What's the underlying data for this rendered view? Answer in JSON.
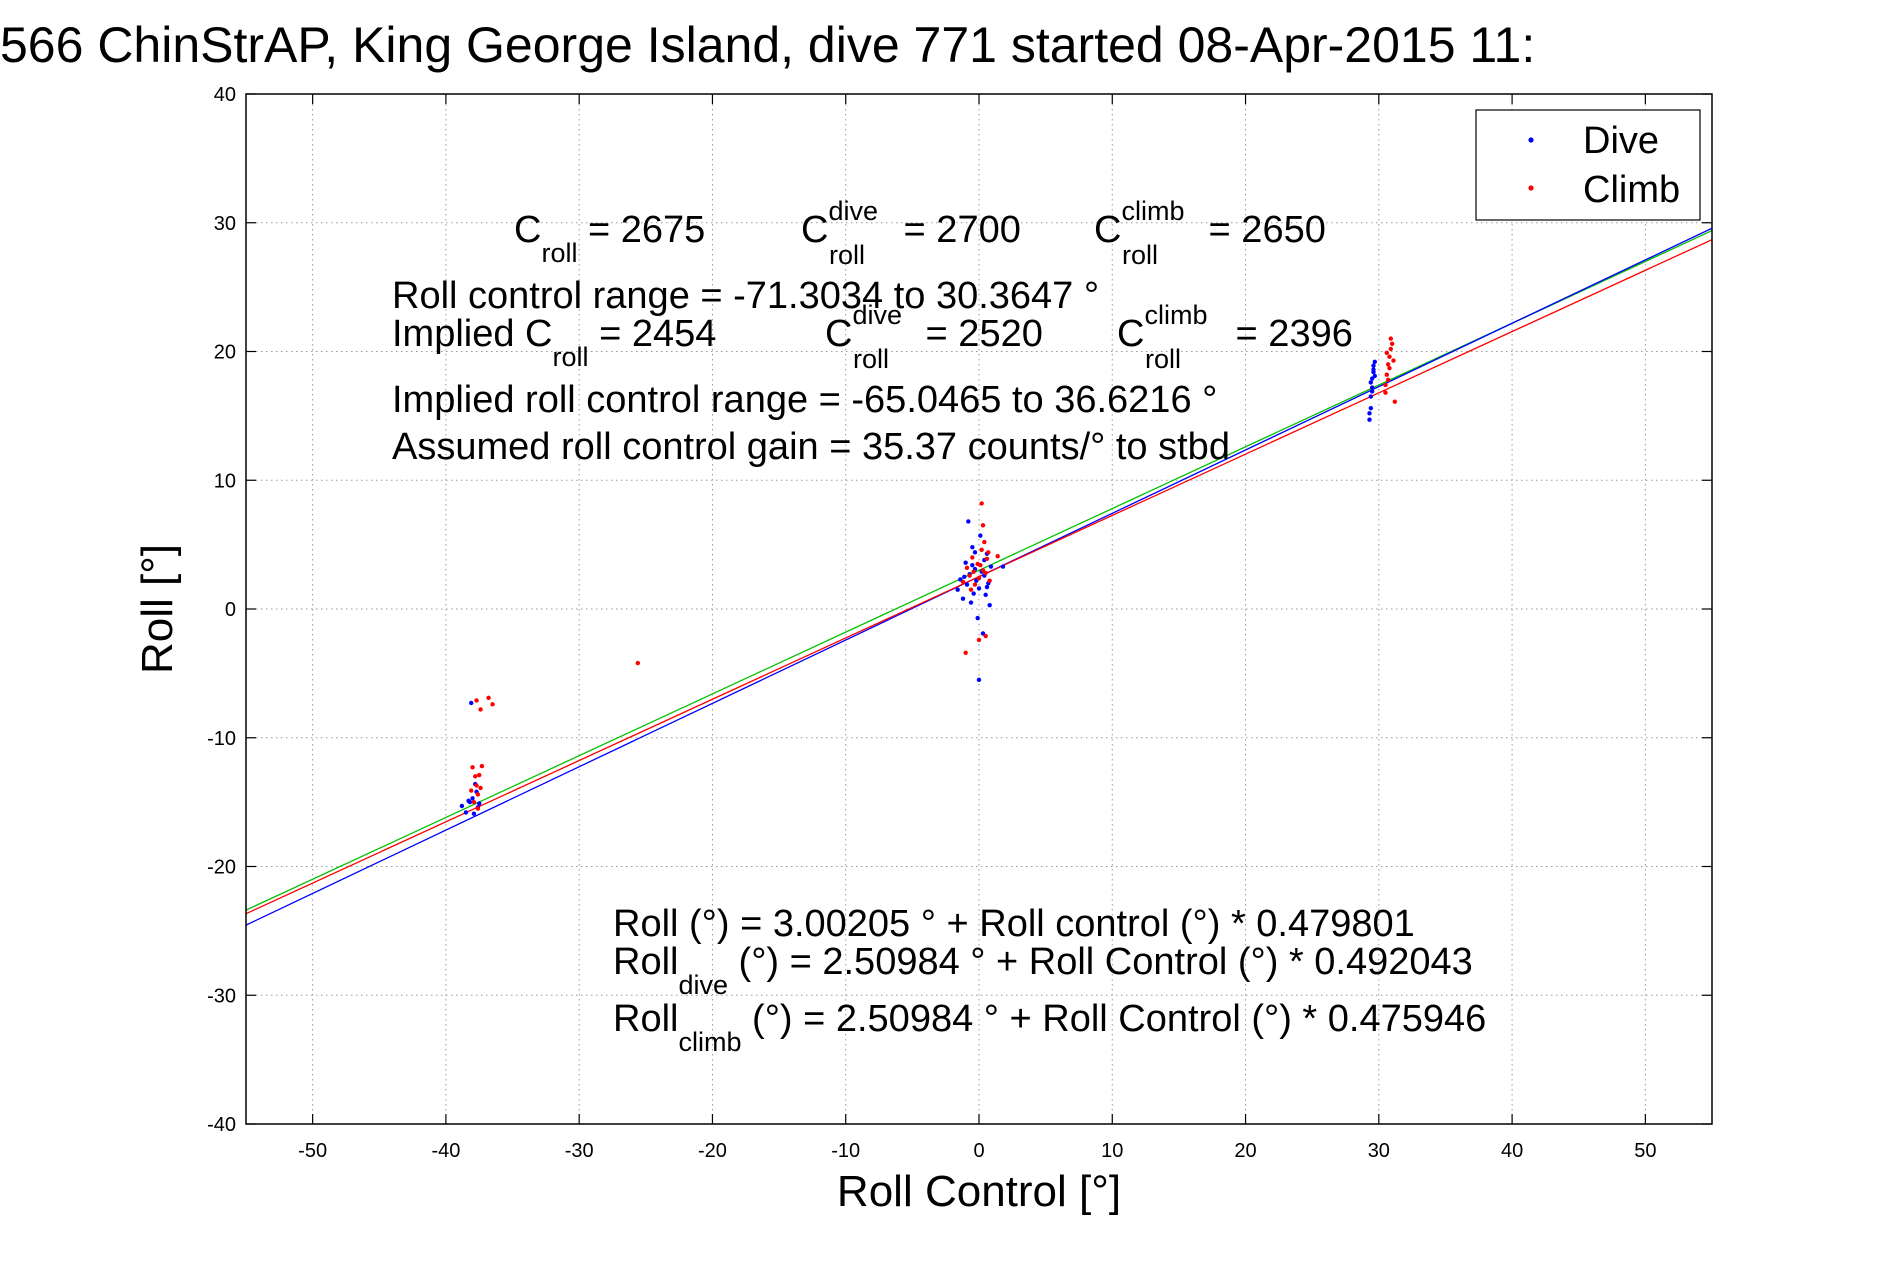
{
  "chart_data": {
    "type": "scatter",
    "title": "566 ChinStrAP, King George Island, dive 771 started 08-Apr-2015 11:",
    "xlabel": "Roll Control [°]",
    "ylabel": "Roll [°]",
    "xlim": [
      -55,
      55
    ],
    "ylim": [
      -40,
      40
    ],
    "xticks": [
      -50,
      -40,
      -30,
      -20,
      -10,
      0,
      10,
      20,
      30,
      40,
      50
    ],
    "yticks": [
      -40,
      -30,
      -20,
      -10,
      0,
      10,
      20,
      30,
      40
    ],
    "xtick_labels": [
      "-50",
      "-40",
      "-30",
      "-20",
      "-10",
      "0",
      "10",
      "20",
      "30",
      "40",
      "50"
    ],
    "ytick_labels": [
      "-40",
      "-30",
      "-20",
      "-10",
      "0",
      "10",
      "20",
      "30",
      "40"
    ],
    "grid": true,
    "legend": {
      "placement": "top-right",
      "entries": [
        {
          "label": "Dive",
          "color": "#0000ff"
        },
        {
          "label": "Climb",
          "color": "#ff0000"
        }
      ]
    },
    "series": [
      {
        "name": "Dive",
        "kind": "points",
        "color": "#0000ff",
        "points": [
          [
            -38.8,
            -15.3
          ],
          [
            -38.5,
            -15.8
          ],
          [
            -38.2,
            -15.0
          ],
          [
            -38.0,
            -14.7
          ],
          [
            -37.9,
            -15.9
          ],
          [
            -37.7,
            -14.2
          ],
          [
            -37.6,
            -15.4
          ],
          [
            -37.8,
            -13.6
          ],
          [
            -38.3,
            -14.9
          ],
          [
            -37.5,
            -15.1
          ],
          [
            -38.1,
            -7.3
          ],
          [
            -1.6,
            1.5
          ],
          [
            -1.4,
            2.3
          ],
          [
            -1.2,
            0.8
          ],
          [
            -1.0,
            3.6
          ],
          [
            -0.9,
            1.9
          ],
          [
            -0.8,
            6.8
          ],
          [
            -0.7,
            2.7
          ],
          [
            -0.6,
            0.5
          ],
          [
            -0.5,
            4.8
          ],
          [
            -0.4,
            1.2
          ],
          [
            -0.3,
            3.1
          ],
          [
            -0.2,
            2.2
          ],
          [
            -0.1,
            -0.7
          ],
          [
            0.0,
            1.6
          ],
          [
            0.1,
            5.7
          ],
          [
            0.2,
            2.9
          ],
          [
            0.3,
            -1.9
          ],
          [
            0.4,
            3.8
          ],
          [
            0.5,
            1.1
          ],
          [
            0.6,
            4.3
          ],
          [
            0.7,
            2.0
          ],
          [
            0.8,
            0.3
          ],
          [
            0.9,
            3.3
          ],
          [
            0.0,
            -5.5
          ],
          [
            -0.5,
            3.4
          ],
          [
            0.4,
            2.6
          ],
          [
            -1.1,
            2.5
          ],
          [
            0.6,
            1.7
          ],
          [
            1.8,
            3.3
          ],
          [
            -0.3,
            4.4
          ],
          [
            29.3,
            14.7
          ],
          [
            29.4,
            15.6
          ],
          [
            29.4,
            16.5
          ],
          [
            29.5,
            17.2
          ],
          [
            29.5,
            17.9
          ],
          [
            29.6,
            18.4
          ],
          [
            29.6,
            18.9
          ],
          [
            29.7,
            19.2
          ],
          [
            29.4,
            17.6
          ],
          [
            29.5,
            16.9
          ],
          [
            29.6,
            18.6
          ],
          [
            29.3,
            15.2
          ],
          [
            29.7,
            18.1
          ]
        ]
      },
      {
        "name": "Climb",
        "kind": "points",
        "color": "#ff0000",
        "points": [
          [
            -38.0,
            -12.3
          ],
          [
            -37.8,
            -13.0
          ],
          [
            -37.7,
            -13.7
          ],
          [
            -37.6,
            -14.4
          ],
          [
            -37.5,
            -12.9
          ],
          [
            -37.4,
            -13.9
          ],
          [
            -38.1,
            -14.1
          ],
          [
            -37.9,
            -15.0
          ],
          [
            -37.3,
            -12.2
          ],
          [
            -37.6,
            -15.5
          ],
          [
            -37.7,
            -7.1
          ],
          [
            -37.4,
            -7.8
          ],
          [
            -36.8,
            -6.9
          ],
          [
            -36.5,
            -7.4
          ],
          [
            -25.6,
            -4.2
          ],
          [
            -1.2,
            2.1
          ],
          [
            -0.9,
            3.2
          ],
          [
            -0.7,
            2.6
          ],
          [
            -0.5,
            4.0
          ],
          [
            -0.3,
            1.9
          ],
          [
            -0.1,
            3.5
          ],
          [
            0.0,
            2.4
          ],
          [
            0.2,
            4.6
          ],
          [
            0.3,
            3.0
          ],
          [
            0.4,
            5.2
          ],
          [
            0.5,
            2.8
          ],
          [
            0.6,
            3.9
          ],
          [
            0.7,
            4.4
          ],
          [
            0.2,
            8.2
          ],
          [
            0.3,
            6.5
          ],
          [
            -1.0,
            -3.4
          ],
          [
            0.0,
            -2.4
          ],
          [
            0.5,
            -2.1
          ],
          [
            1.4,
            4.1
          ],
          [
            -0.6,
            1.5
          ],
          [
            0.1,
            3.4
          ],
          [
            -0.4,
            2.9
          ],
          [
            0.8,
            2.2
          ],
          [
            30.5,
            17.4
          ],
          [
            30.6,
            18.2
          ],
          [
            30.7,
            19.0
          ],
          [
            30.8,
            19.6
          ],
          [
            30.9,
            20.2
          ],
          [
            31.0,
            20.6
          ],
          [
            30.6,
            19.9
          ],
          [
            30.8,
            18.7
          ],
          [
            31.1,
            19.3
          ],
          [
            30.5,
            16.8
          ],
          [
            31.2,
            16.1
          ],
          [
            30.9,
            21.0
          ],
          [
            30.7,
            17.8
          ]
        ]
      },
      {
        "name": "Roll",
        "kind": "fit",
        "color": "#00c000",
        "intercept": 3.00205,
        "slope": 0.479801
      },
      {
        "name": "Roll dive",
        "kind": "fit",
        "color": "#0000ff",
        "intercept": 2.50984,
        "slope": 0.492043
      },
      {
        "name": "Roll climb",
        "kind": "fit",
        "color": "#ff0000",
        "intercept": 2.50984,
        "slope": 0.475946
      }
    ],
    "annotations": {
      "c_roll": {
        "label": "C",
        "sub": "roll",
        "value": " = 2675"
      },
      "c_dive": {
        "label": "C",
        "sup": "dive",
        "sub": "roll",
        "value": " = 2700"
      },
      "c_climb": {
        "label": "C",
        "sup": "climb",
        "sub": "roll",
        "value": " = 2650"
      },
      "range": "Roll control range = -71.3034 to 30.3647 °",
      "implied_prefix": "Implied C",
      "implied_sub": "roll",
      "implied_value": " = 2454",
      "implied_dive": {
        "label": "C",
        "sup": "dive",
        "sub": "roll",
        "value": " = 2520"
      },
      "implied_climb": {
        "label": "C",
        "sup": "climb",
        "sub": "roll",
        "value": " = 2396"
      },
      "implied_range": "Implied roll control range = -65.0465 to 36.6216 °",
      "gain": "Assumed roll control gain = 35.37 counts/° to stbd",
      "eq_all": "Roll (°) = 3.00205 ° + Roll control (°) * 0.479801",
      "eq_dive_prefix": "Roll",
      "eq_dive_sub": "dive",
      "eq_dive_rest": " (°) = 2.50984 ° + Roll Control (°) * 0.492043",
      "eq_climb_prefix": "Roll",
      "eq_climb_sub": "climb",
      "eq_climb_rest": " (°) = 2.50984 ° + Roll Control (°) * 0.475946"
    }
  }
}
